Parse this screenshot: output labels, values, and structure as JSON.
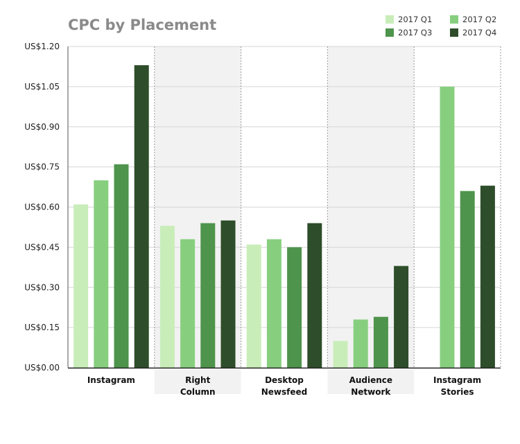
{
  "chart_data": {
    "type": "bar",
    "title": "CPC by Placement",
    "categories": [
      [
        "Instagram"
      ],
      [
        "Right",
        "Column"
      ],
      [
        "Desktop",
        "Newsfeed"
      ],
      [
        "Audience",
        "Network"
      ],
      [
        "Instagram",
        "Stories"
      ]
    ],
    "series": [
      {
        "name": "2017 Q1",
        "color": "#c9edb9",
        "values": [
          0.61,
          0.53,
          0.46,
          0.1,
          null
        ]
      },
      {
        "name": "2017 Q2",
        "color": "#87cf7f",
        "values": [
          0.7,
          0.48,
          0.48,
          0.18,
          1.05
        ]
      },
      {
        "name": "2017 Q3",
        "color": "#4e944c",
        "values": [
          0.76,
          0.54,
          0.45,
          0.19,
          0.66
        ]
      },
      {
        "name": "2017 Q4",
        "color": "#2e4d2a",
        "values": [
          1.13,
          0.55,
          0.54,
          0.38,
          0.68
        ]
      }
    ],
    "yticks": [
      "US$0.00",
      "US$0.15",
      "US$0.30",
      "US$0.45",
      "US$0.60",
      "US$0.75",
      "US$0.90",
      "US$1.05",
      "US$1.20"
    ],
    "ylim": [
      0,
      1.2
    ],
    "legend_position": "top-right",
    "shaded_categories": [
      1,
      3
    ],
    "shade_color": "#f2f2f2",
    "grid": true
  }
}
